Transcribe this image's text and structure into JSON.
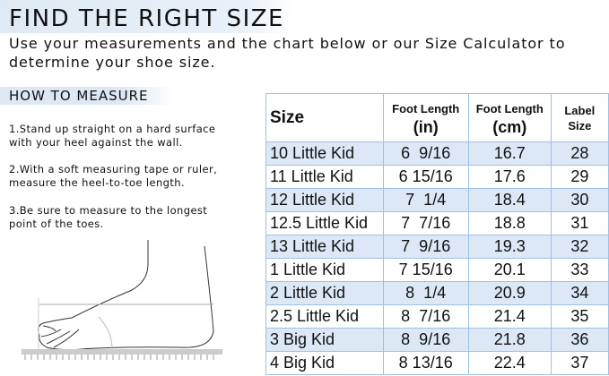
{
  "header": {
    "title": "FIND THE RIGHT SIZE",
    "subtitle_line1": "Use your measurements and the chart below or our Size Calculator to",
    "subtitle_line2": "determine your shoe size."
  },
  "howto": {
    "title": "HOW TO MEASURE",
    "steps": [
      [
        "1.Stand up straight on a hard surface",
        "with your heel against the wall."
      ],
      [
        "2.With a soft measuring tape or ruler,",
        "measure the heel-to-toe length."
      ],
      [
        "3.Be sure to measure to the longest",
        "point of the toes."
      ]
    ]
  },
  "table": {
    "headers": {
      "size": "Size",
      "in_top": "Foot Length",
      "in_bottom": "(in)",
      "cm_top": "Foot Length",
      "cm_bottom": "(cm)",
      "label_top": "Label",
      "label_bottom": "Size"
    },
    "rows": [
      [
        "10 Little Kid",
        "6  9/16",
        "16.7",
        "28"
      ],
      [
        "11 Little Kid",
        "6 15/16",
        "17.6",
        "29"
      ],
      [
        "12 Little Kid",
        "7  1/4",
        "18.4",
        "30"
      ],
      [
        "12.5 Little Kid",
        "7  7/16",
        "18.8",
        "31"
      ],
      [
        "13 Little Kid",
        "7  9/16",
        "19.3",
        "32"
      ],
      [
        "1 Little Kid",
        "7 15/16",
        "20.1",
        "33"
      ],
      [
        "2 Little Kid",
        "8  1/4",
        "20.9",
        "34"
      ],
      [
        "2.5 Little Kid",
        "8  7/16",
        "21.4",
        "35"
      ],
      [
        "3 Big Kid",
        "8  9/16",
        "21.8",
        "36"
      ],
      [
        "4 Big Kid",
        "8 13/16",
        "22.4",
        "37"
      ]
    ]
  },
  "colors": {
    "row_alt": "#dce8f5",
    "border": "#9dc0e4"
  }
}
